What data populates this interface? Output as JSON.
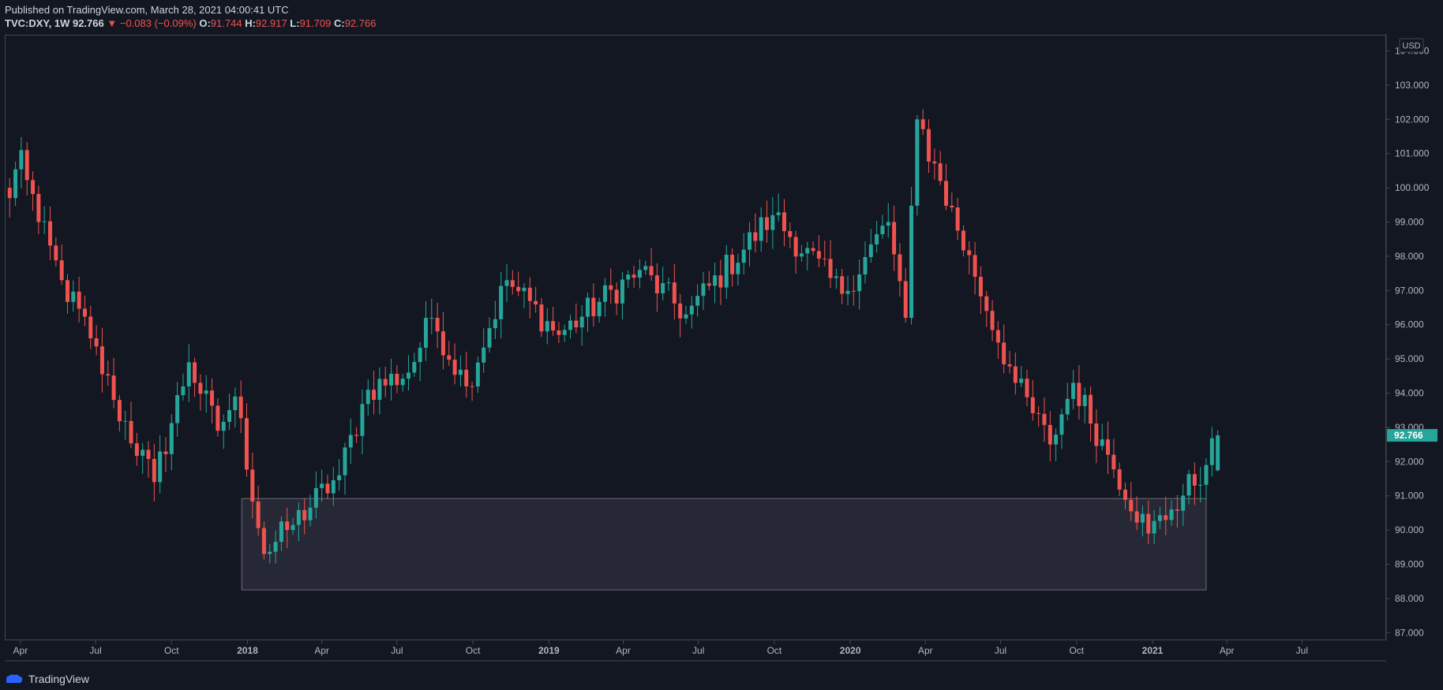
{
  "header": {
    "published": "Published on TradingView.com, March 28, 2021 04:00:41 UTC",
    "symbol": "TVC:DXY, 1W",
    "last": "92.766",
    "change": "−0.083 (−0.09%)",
    "o_label": "O:",
    "o_val": "91.744",
    "h_label": "H:",
    "h_val": "92.917",
    "l_label": "L:",
    "l_val": "91.709",
    "c_label": "C:",
    "c_val": "92.766"
  },
  "footer": {
    "brand": "TradingView"
  },
  "colors": {
    "up": "#26a69a",
    "down": "#ef5350",
    "background": "#131722",
    "zone": "#262834"
  },
  "chart_data": {
    "type": "candlestick",
    "currency_label": "USD",
    "current_price": 92.766,
    "current_price_label": "92.766",
    "y_ticks": [
      "87.000",
      "88.000",
      "89.000",
      "90.000",
      "91.000",
      "92.000",
      "93.000",
      "94.000",
      "95.000",
      "96.000",
      "97.000",
      "98.000",
      "99.000",
      "100.000",
      "101.000",
      "102.000",
      "103.000",
      "104.000"
    ],
    "ylim": [
      86.8,
      104.45
    ],
    "x_ticks": [
      {
        "label": "Apr",
        "date": "2017-04-01",
        "bold": false
      },
      {
        "label": "Jul",
        "date": "2017-07-01",
        "bold": false
      },
      {
        "label": "Oct",
        "date": "2017-10-01",
        "bold": false
      },
      {
        "label": "2018",
        "date": "2018-01-01",
        "bold": true
      },
      {
        "label": "Apr",
        "date": "2018-04-01",
        "bold": false
      },
      {
        "label": "Jul",
        "date": "2018-07-01",
        "bold": false
      },
      {
        "label": "Oct",
        "date": "2018-10-01",
        "bold": false
      },
      {
        "label": "2019",
        "date": "2019-01-01",
        "bold": true
      },
      {
        "label": "Apr",
        "date": "2019-04-01",
        "bold": false
      },
      {
        "label": "Jul",
        "date": "2019-07-01",
        "bold": false
      },
      {
        "label": "Oct",
        "date": "2019-10-01",
        "bold": false
      },
      {
        "label": "2020",
        "date": "2020-01-01",
        "bold": true
      },
      {
        "label": "Apr",
        "date": "2020-04-01",
        "bold": false
      },
      {
        "label": "Jul",
        "date": "2020-07-01",
        "bold": false
      },
      {
        "label": "Oct",
        "date": "2020-10-01",
        "bold": false
      },
      {
        "label": "2021",
        "date": "2021-01-01",
        "bold": true
      },
      {
        "label": "Apr",
        "date": "2021-04-01",
        "bold": false
      },
      {
        "label": "Jul",
        "date": "2021-07-01",
        "bold": false
      }
    ],
    "xlim": [
      "2017-03-13",
      "2021-10-10"
    ],
    "support_zone": {
      "start": "2017-12-25",
      "end": "2021-03-07",
      "low": 88.25,
      "high": 90.92
    },
    "key_points": [
      {
        "date": "2017-03-19",
        "close": 99.7
      },
      {
        "date": "2017-04-02",
        "close": 101.1
      },
      {
        "date": "2017-04-23",
        "close": 99.0
      },
      {
        "date": "2017-05-21",
        "close": 97.3
      },
      {
        "date": "2017-06-25",
        "close": 95.6
      },
      {
        "date": "2017-07-23",
        "close": 93.8
      },
      {
        "date": "2017-09-10",
        "close": 91.4
      },
      {
        "date": "2017-10-22",
        "close": 94.9
      },
      {
        "date": "2017-11-26",
        "close": 92.9
      },
      {
        "date": "2017-12-17",
        "close": 93.9
      },
      {
        "date": "2018-01-21",
        "close": 89.3
      },
      {
        "date": "2018-02-18",
        "close": 90.0
      },
      {
        "date": "2018-04-22",
        "close": 91.6
      },
      {
        "date": "2018-05-27",
        "close": 94.1
      },
      {
        "date": "2018-07-15",
        "close": 94.6
      },
      {
        "date": "2018-08-12",
        "close": 96.2
      },
      {
        "date": "2018-09-23",
        "close": 94.2
      },
      {
        "date": "2018-11-11",
        "close": 97.3
      },
      {
        "date": "2019-01-13",
        "close": 95.7
      },
      {
        "date": "2019-04-21",
        "close": 97.6
      },
      {
        "date": "2019-06-16",
        "close": 96.3
      },
      {
        "date": "2019-09-29",
        "close": 99.2
      },
      {
        "date": "2019-12-22",
        "close": 96.9
      },
      {
        "date": "2020-02-16",
        "close": 99.0
      },
      {
        "date": "2020-03-08",
        "close": 96.2
      },
      {
        "date": "2020-03-22",
        "close": 102.0
      },
      {
        "date": "2020-04-19",
        "close": 100.2
      },
      {
        "date": "2020-05-31",
        "close": 97.4
      },
      {
        "date": "2020-07-19",
        "close": 94.3
      },
      {
        "date": "2020-08-30",
        "close": 92.5
      },
      {
        "date": "2020-09-27",
        "close": 94.3
      },
      {
        "date": "2020-11-08",
        "close": 92.2
      },
      {
        "date": "2020-12-27",
        "close": 89.9
      },
      {
        "date": "2021-01-24",
        "close": 90.6
      },
      {
        "date": "2021-03-07",
        "close": 91.9
      },
      {
        "date": "2021-03-21",
        "close": 92.766
      }
    ],
    "last_candle": {
      "date": "2021-03-21",
      "open": 91.744,
      "high": 92.917,
      "low": 91.709,
      "close": 92.766
    }
  }
}
